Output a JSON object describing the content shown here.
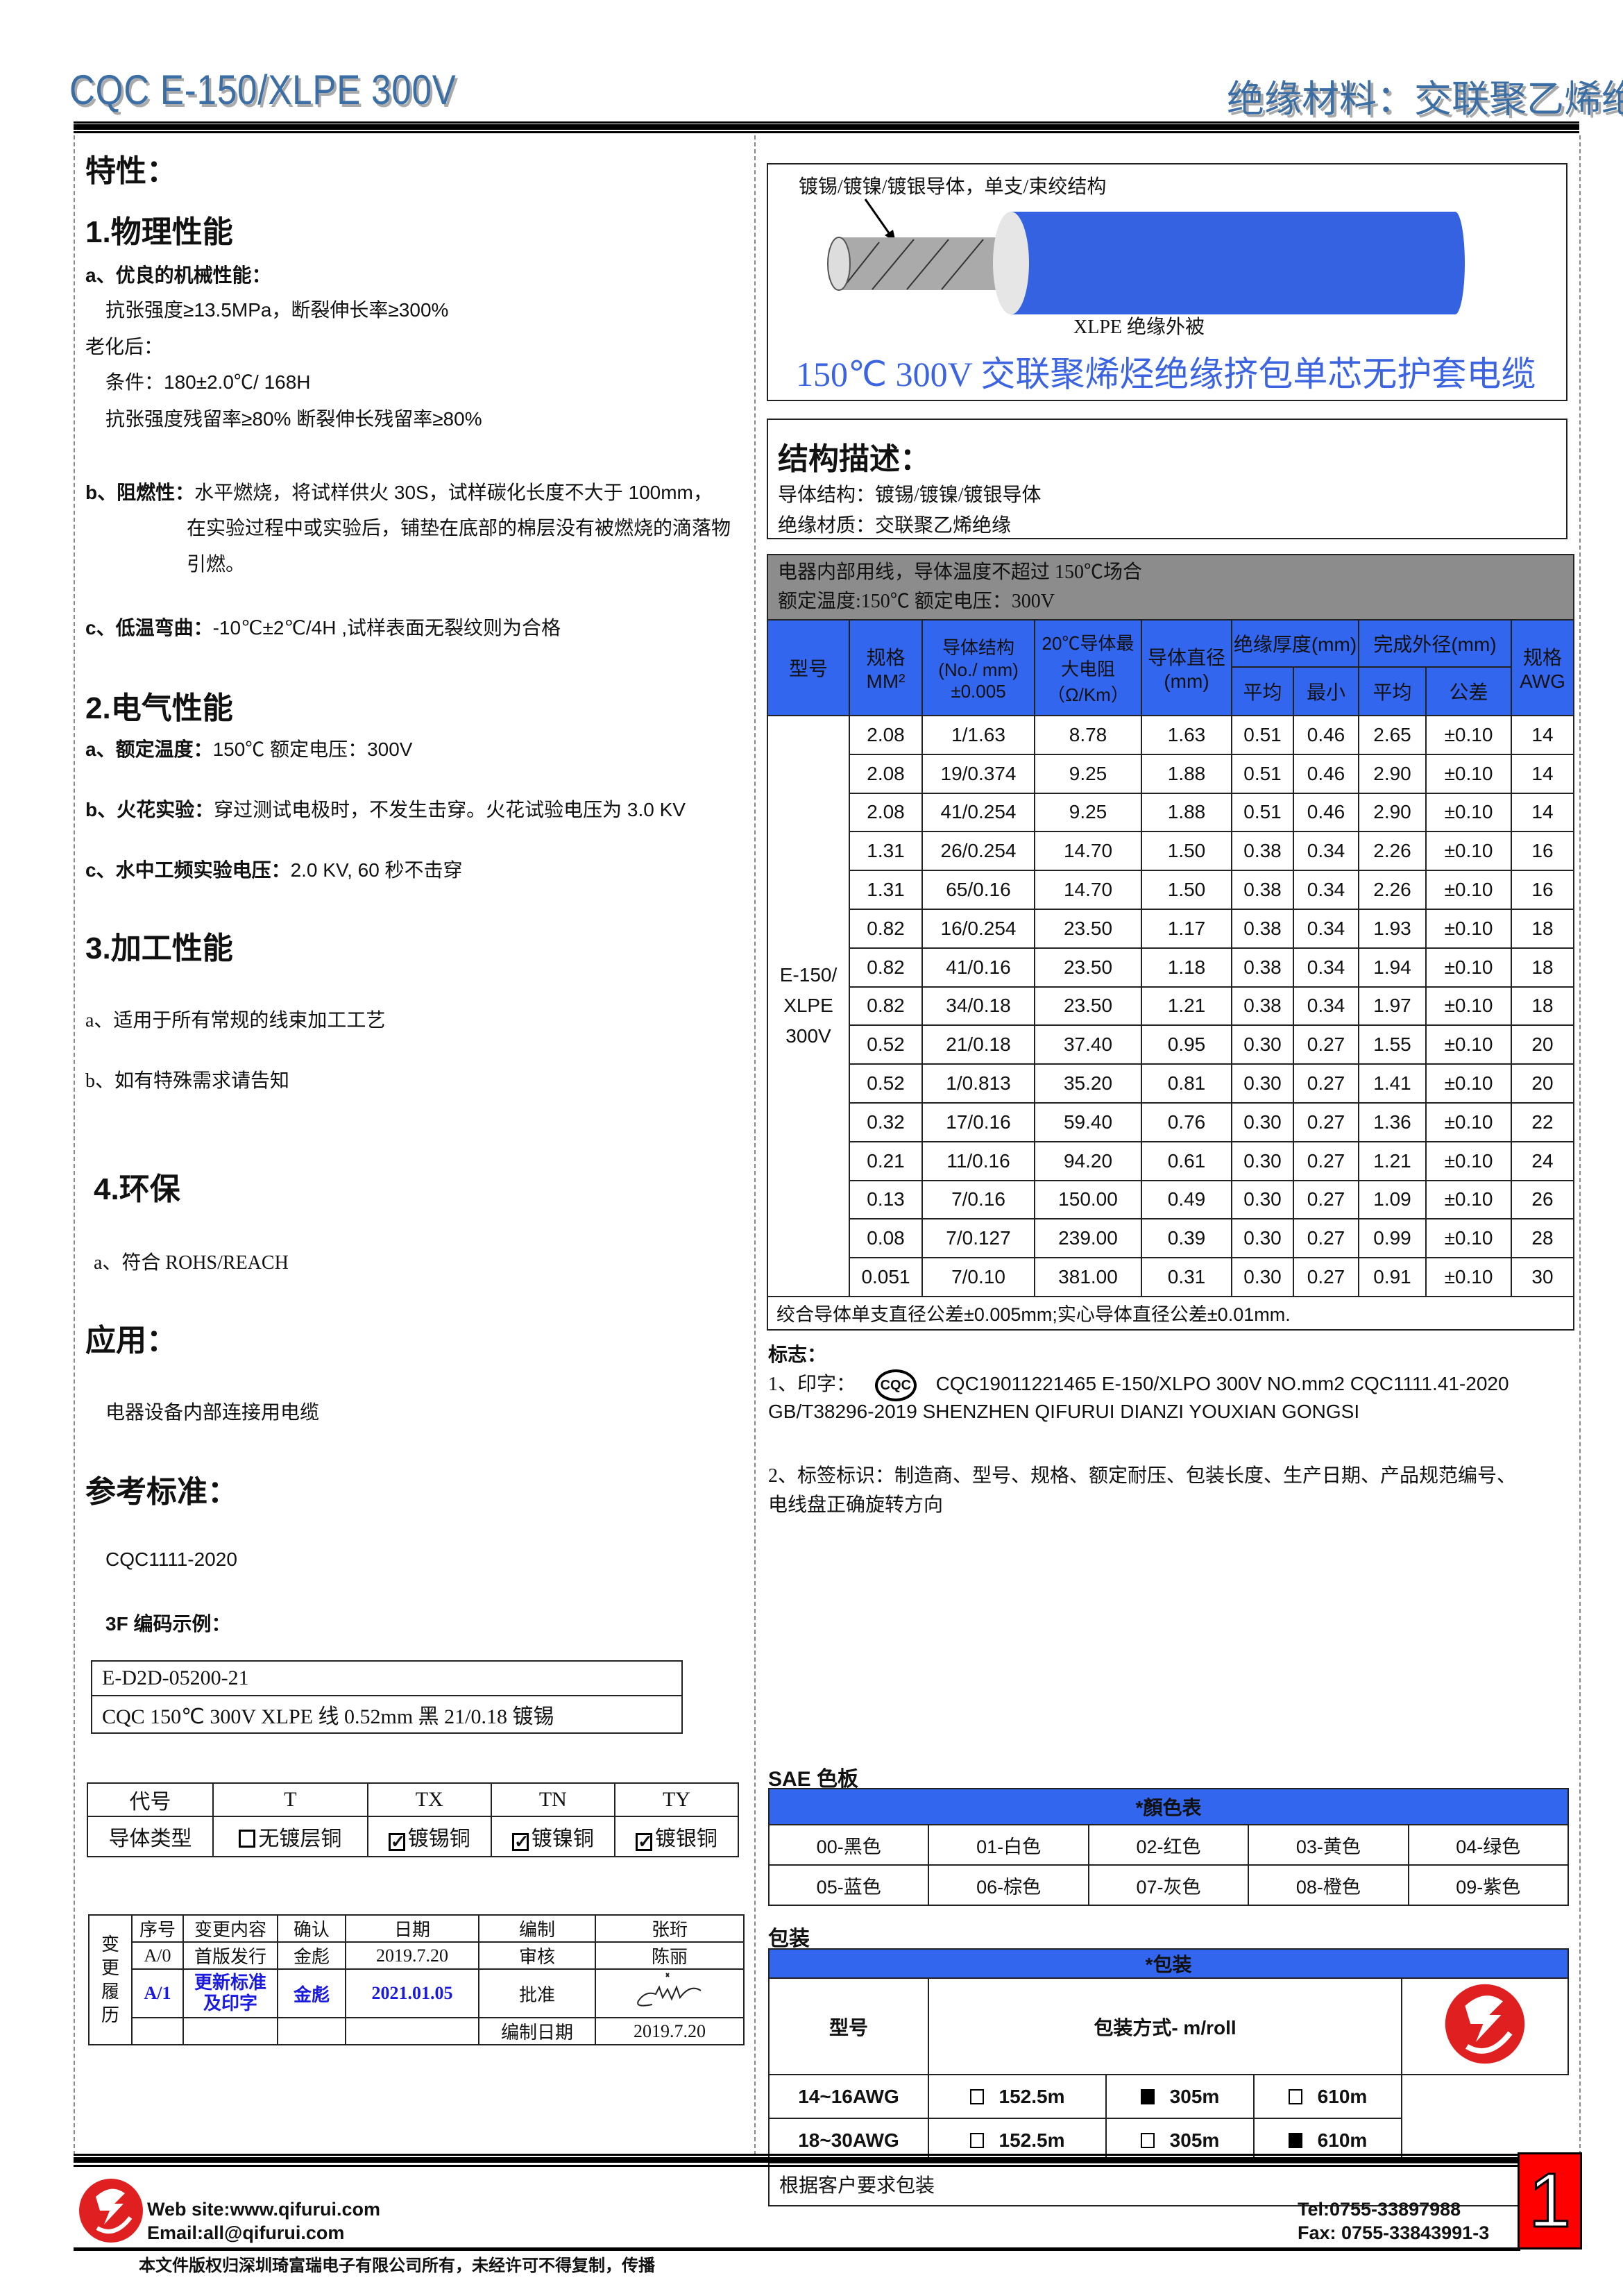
{
  "header": {
    "title": "CQC E-150/XLPE 300V",
    "subtitle": "绝缘材料：交联聚乙烯绝缘"
  },
  "left": {
    "features_title": "特性：",
    "physical": {
      "title": "1.物理性能",
      "a_title": "a、优良的机械性能：",
      "a_line1": "抗张强度≥13.5MPa，断裂伸长率≥300%",
      "aging": "老化后：",
      "condition": "条件：180±2.0℃/ 168H",
      "retention": "抗张强度残留率≥80%  断裂伸长残留率≥80%",
      "b_label": "b、阻燃性：",
      "b_line1": "水平燃烧，将试样供火 30S，试样碳化长度不大于 100mm，",
      "b_line2": "在实验过程中或实验后，铺垫在底部的棉层没有被燃烧的滴落物",
      "b_line3": "引燃。",
      "c_label": "c、低温弯曲：",
      "c_text": "-10℃±2℃/4H ,试样表面无裂纹则为合格"
    },
    "electrical": {
      "title": "2.电气性能",
      "a_label": "a、额定温度：",
      "a_text": "150℃    额定电压：300V",
      "b_label": "b、火花实验：",
      "b_text": "穿过测试电极时，不发生击穿。火花试验电压为 3.0 KV",
      "c_label": "c、水中工频实验电压：",
      "c_text": "2.0 KV, 60 秒不击穿"
    },
    "processing": {
      "title": "3.加工性能",
      "a": "a、适用于所有常规的线束加工工艺",
      "b": "b、如有特殊需求请告知"
    },
    "env": {
      "title": "4.环保",
      "a": "a、符合 ROHS/REACH"
    },
    "application": {
      "title": "应用：",
      "text": "电器设备内部连接用电缆"
    },
    "standard": {
      "title": "参考标准：",
      "text": "CQC1111-2020",
      "code_title": "3F 编码示例：",
      "code_line1": "E-D2D-05200-21",
      "code_line2": "CQC 150℃  300V XLPE 线  0.52mm  黑  21/0.18 镀锡"
    },
    "conductor_table": {
      "row1_label": "代号",
      "row2_label": "导体类型",
      "codes": [
        "T",
        "TX",
        "TN",
        "TY"
      ],
      "types": [
        {
          "label": "无镀层铜",
          "checked": false
        },
        {
          "label": "镀锡铜",
          "checked": true
        },
        {
          "label": "镀镍铜",
          "checked": true
        },
        {
          "label": "镀银铜",
          "checked": true
        }
      ]
    },
    "history": {
      "side_label": "变更履历",
      "headers": [
        "序号",
        "变更内容",
        "确认",
        "日期",
        "编制",
        "张珩"
      ],
      "row1": [
        "A/0",
        "首版发行",
        "金彪",
        "2019.7.20",
        "审核",
        "陈丽"
      ],
      "row2": [
        "A/1",
        "更新标准及印字",
        "金彪",
        "2021.01.05",
        "批准"
      ],
      "row3_label": "编制日期",
      "row3_value": "2019.7.20",
      "highlight_color": "#1a1adf"
    }
  },
  "right": {
    "figure": {
      "conductor_label": "镀锡/镀镍/镀银导体，单支/束绞结构",
      "insulation_label": "XLPE  绝缘外被",
      "caption": "150℃  300V 交联聚烯烃绝缘挤包单芯无护套电缆",
      "cable_color": "#3462e0"
    },
    "structure": {
      "title": "结构描述：",
      "conductor": "导体结构：镀锡/镀镍/镀银导体",
      "insulation": "绝缘材质：交联聚乙烯绝缘"
    },
    "spec_table": {
      "note1": "电器内部用线，导体温度不超过 150℃场合",
      "note2": "额定温度:150℃  额定电压：300V",
      "headers": {
        "model": "型号",
        "size": "规格MM²",
        "structure": "导体结构(No./ mm)±0.005",
        "resistance": "20℃导体最大电阻（Ω/Km）",
        "diameter": "导体直径(mm)",
        "insulation": "绝缘厚度(mm)",
        "od": "完成外径(mm)",
        "avg": "平均",
        "min": "最小",
        "od_avg": "平均",
        "tol": "公差",
        "awg": "规格AWG"
      },
      "model": "E-150/ XLPE 300V",
      "rows": [
        [
          "2.08",
          "1/1.63",
          "8.78",
          "1.63",
          "0.51",
          "0.46",
          "2.65",
          "±0.10",
          "14"
        ],
        [
          "2.08",
          "19/0.374",
          "9.25",
          "1.88",
          "0.51",
          "0.46",
          "2.90",
          "±0.10",
          "14"
        ],
        [
          "2.08",
          "41/0.254",
          "9.25",
          "1.88",
          "0.51",
          "0.46",
          "2.90",
          "±0.10",
          "14"
        ],
        [
          "1.31",
          "26/0.254",
          "14.70",
          "1.50",
          "0.38",
          "0.34",
          "2.26",
          "±0.10",
          "16"
        ],
        [
          "1.31",
          "65/0.16",
          "14.70",
          "1.50",
          "0.38",
          "0.34",
          "2.26",
          "±0.10",
          "16"
        ],
        [
          "0.82",
          "16/0.254",
          "23.50",
          "1.17",
          "0.38",
          "0.34",
          "1.93",
          "±0.10",
          "18"
        ],
        [
          "0.82",
          "41/0.16",
          "23.50",
          "1.18",
          "0.38",
          "0.34",
          "1.94",
          "±0.10",
          "18"
        ],
        [
          "0.82",
          "34/0.18",
          "23.50",
          "1.21",
          "0.38",
          "0.34",
          "1.97",
          "±0.10",
          "18"
        ],
        [
          "0.52",
          "21/0.18",
          "37.40",
          "0.95",
          "0.30",
          "0.27",
          "1.55",
          "±0.10",
          "20"
        ],
        [
          "0.52",
          "1/0.813",
          "35.20",
          "0.81",
          "0.30",
          "0.27",
          "1.41",
          "±0.10",
          "20"
        ],
        [
          "0.32",
          "17/0.16",
          "59.40",
          "0.76",
          "0.30",
          "0.27",
          "1.36",
          "±0.10",
          "22"
        ],
        [
          "0.21",
          "11/0.16",
          "94.20",
          "0.61",
          "0.30",
          "0.27",
          "1.21",
          "±0.10",
          "24"
        ],
        [
          "0.13",
          "7/0.16",
          "150.00",
          "0.49",
          "0.30",
          "0.27",
          "1.09",
          "±0.10",
          "26"
        ],
        [
          "0.08",
          "7/0.127",
          "239.00",
          "0.39",
          "0.30",
          "0.27",
          "0.99",
          "±0.10",
          "28"
        ],
        [
          "0.051",
          "7/0.10",
          "381.00",
          "0.31",
          "0.30",
          "0.27",
          "0.91",
          "±0.10",
          "30"
        ]
      ],
      "footnote": "绞合导体单支直径公差±0.005mm;实心导体直径公差±0.01mm.",
      "header_color": "#3366ee",
      "note_bg": "#8c8c8c"
    },
    "marking": {
      "title": "标志：",
      "line1_prefix": "1、印字：",
      "cqc_logo": "CQC",
      "line1": "CQC19011221465  E-150/XLPO  300V  NO.mm2  CQC1111.41-2020",
      "line2": "GB/T38296-2019 SHENZHEN QIFURUI DIANZI YOUXIAN GONGSI",
      "line3": "2、标签标识：制造商、型号、规格、额定耐压、包装长度、生产日期、产品规范编号、",
      "line4": "电线盘正确旋转方向"
    },
    "colors": {
      "title": "SAE 色板",
      "header": "*顏色表",
      "items": [
        "00-黑色",
        "01-白色",
        "02-红色",
        "03-黄色",
        "04-绿色",
        "05-蓝色",
        "06-棕色",
        "07-灰色",
        "08-橙色",
        "09-紫色"
      ]
    },
    "packaging": {
      "title": "包装",
      "header": "*包装",
      "col1": "型号",
      "col2": "包装方式- m/roll",
      "rows": [
        {
          "model": "14~16AWG",
          "options": [
            {
              "label": "152.5m",
              "selected": false
            },
            {
              "label": "305m",
              "selected": true
            },
            {
              "label": "610m",
              "selected": false
            }
          ]
        },
        {
          "model": "18~30AWG",
          "options": [
            {
              "label": "152.5m",
              "selected": false
            },
            {
              "label": "305m",
              "selected": false
            },
            {
              "label": "610m",
              "selected": true
            }
          ]
        }
      ],
      "note": "根据客户要求包装"
    }
  },
  "footer": {
    "web": "Web site:www.qifurui.com",
    "email": "Email:all@qifurui.com",
    "tel": "Tel:0755-33897988",
    "fax": "Fax: 0755-33843991-3",
    "copyright": "本文件版权归深圳琦富瑞电子有限公司所有，未经许可不得复制，传播",
    "page": "1",
    "logo_color": "#e02020"
  }
}
